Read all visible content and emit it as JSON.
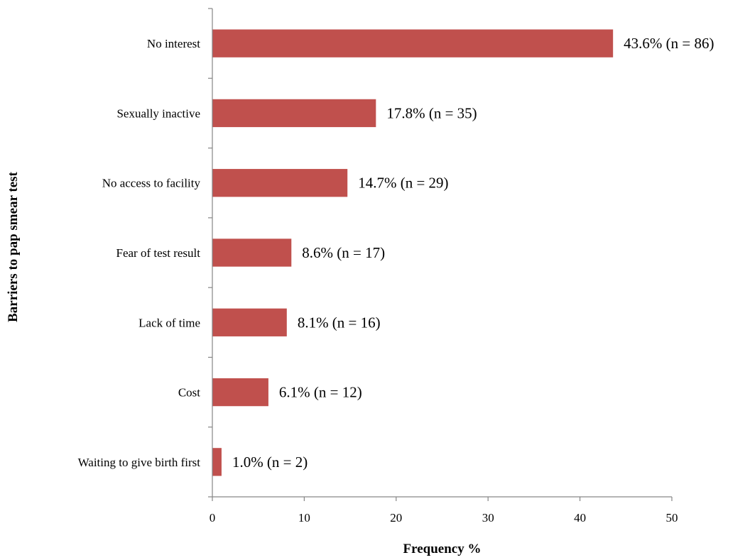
{
  "chart_data": {
    "type": "bar",
    "orientation": "horizontal",
    "categories": [
      "No interest",
      "Sexually inactive",
      "No access to facility",
      "Fear of test result",
      "Lack of time",
      "Cost",
      "Waiting to give birth first"
    ],
    "values": [
      43.6,
      17.8,
      14.7,
      8.6,
      8.1,
      6.1,
      1.0
    ],
    "data_labels": [
      "43.6% (n = 86)",
      "17.8% (n = 35)",
      "14.7% (n = 29)",
      "8.6% (n = 17)",
      "8.1% (n = 16)",
      "6.1% (n = 12)",
      "1.0% (n = 2)"
    ],
    "xlabel": "Frequency %",
    "ylabel": "Barriers to pap smear test",
    "xlim": [
      0,
      50
    ],
    "xticks": [
      0,
      10,
      20,
      30,
      40,
      50
    ],
    "grid": false,
    "legend": "none",
    "bar_color": "#c0504d"
  }
}
